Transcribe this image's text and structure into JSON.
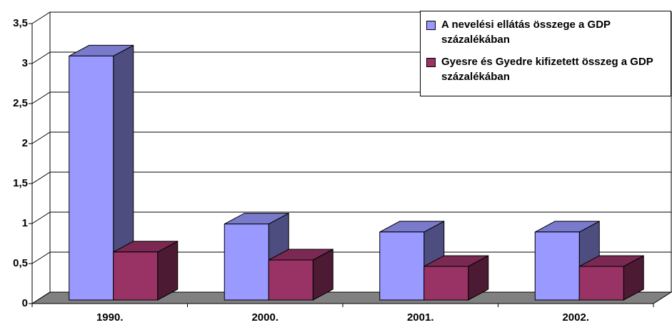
{
  "chart_data": {
    "type": "bar3d",
    "categories": [
      "1990.",
      "2000.",
      "2001.",
      "2002."
    ],
    "series": [
      {
        "name": "A nevelési ellátás összege a GDP százalékában",
        "color": "#9999ff",
        "values": [
          3.05,
          0.95,
          0.85,
          0.85
        ]
      },
      {
        "name": "Gyesre és Gyedre kifizetett összeg a GDP százalékában",
        "color": "#993366",
        "values": [
          0.6,
          0.5,
          0.42,
          0.42
        ]
      }
    ],
    "ylim": [
      0,
      3.5
    ],
    "yticks": [
      0,
      {
        "value": 0.5,
        "label": "0,5"
      },
      1,
      {
        "value": 1.5,
        "label": "1,5"
      },
      2,
      {
        "value": 2.5,
        "label": "2,5"
      },
      3,
      {
        "value": 3.5,
        "label": "3,5"
      }
    ],
    "grid": true,
    "legend": "top-right"
  }
}
